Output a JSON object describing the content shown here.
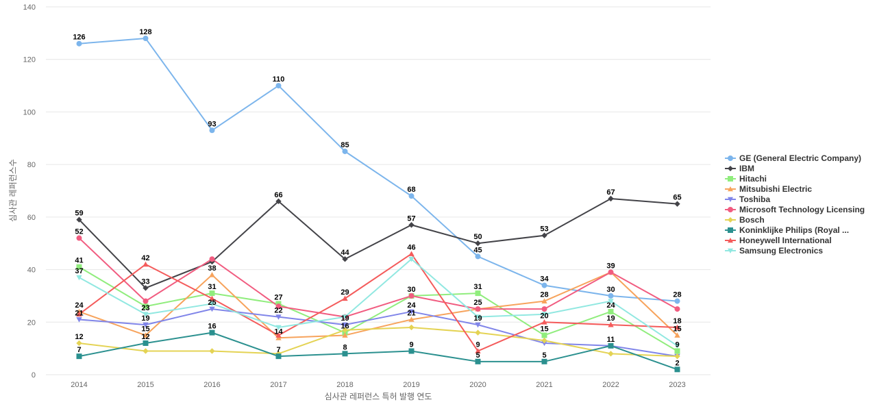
{
  "chart_data": {
    "type": "line",
    "xlabel": "심사관 레퍼런스 특허 발행 연도",
    "ylabel": "심사관 레퍼런스수",
    "ylim": [
      0,
      140
    ],
    "yticks": [
      0,
      20,
      40,
      60,
      80,
      100,
      120,
      140
    ],
    "grid": true,
    "legend_position": "right",
    "categories": [
      "2014",
      "2015",
      "2016",
      "2017",
      "2018",
      "2019",
      "2020",
      "2021",
      "2022",
      "2023"
    ],
    "series": [
      {
        "name": "GE (General Electric Company)",
        "color": "#7cb5ec",
        "marker": "circle",
        "values": [
          126,
          128,
          93,
          110,
          85,
          68,
          45,
          34,
          30,
          28
        ],
        "labels": [
          true,
          true,
          true,
          true,
          true,
          true,
          true,
          true,
          true,
          true
        ]
      },
      {
        "name": "IBM",
        "color": "#434348",
        "marker": "diamond",
        "values": [
          59,
          33,
          43,
          66,
          44,
          57,
          50,
          53,
          67,
          65
        ],
        "labels": [
          true,
          true,
          false,
          true,
          true,
          true,
          true,
          true,
          true,
          true
        ]
      },
      {
        "name": "Hitachi",
        "color": "#90ed7d",
        "marker": "square",
        "values": [
          41,
          26,
          31,
          27,
          16,
          30,
          31,
          15,
          24,
          9
        ],
        "labels": [
          true,
          false,
          true,
          true,
          true,
          true,
          true,
          true,
          true,
          true
        ]
      },
      {
        "name": "Mitsubishi Electric",
        "color": "#f7a35c",
        "marker": "triangle",
        "values": [
          24,
          15,
          38,
          14,
          15,
          21,
          25,
          28,
          39,
          15
        ],
        "labels": [
          true,
          true,
          true,
          true,
          false,
          true,
          true,
          true,
          true,
          true
        ]
      },
      {
        "name": "Toshiba",
        "color": "#8085e9",
        "marker": "triangle-down",
        "values": [
          21,
          19,
          25,
          22,
          19,
          24,
          19,
          12,
          11,
          7
        ],
        "labels": [
          true,
          true,
          true,
          true,
          true,
          true,
          true,
          false,
          false,
          false
        ]
      },
      {
        "name": "Microsoft Technology Licensing",
        "color": "#f15c80",
        "marker": "circle",
        "values": [
          52,
          28,
          44,
          26,
          22,
          30,
          25,
          25,
          39,
          25
        ],
        "labels": [
          true,
          false,
          false,
          false,
          false,
          false,
          false,
          false,
          false,
          false
        ]
      },
      {
        "name": "Bosch",
        "color": "#e4d354",
        "marker": "diamond",
        "values": [
          12,
          9,
          9,
          8,
          17,
          18,
          16,
          13,
          8,
          7
        ],
        "labels": [
          true,
          false,
          false,
          false,
          false,
          false,
          false,
          false,
          false,
          false
        ]
      },
      {
        "name": "Koninklijke Philips (Royal ...",
        "color": "#2b908f",
        "marker": "square",
        "values": [
          7,
          12,
          16,
          7,
          8,
          9,
          5,
          5,
          11,
          2
        ],
        "labels": [
          true,
          true,
          true,
          true,
          true,
          true,
          true,
          true,
          true,
          true
        ]
      },
      {
        "name": "Honeywell International",
        "color": "#f45b5b",
        "marker": "triangle",
        "values": [
          23,
          42,
          29,
          15,
          29,
          46,
          9,
          20,
          19,
          18
        ],
        "labels": [
          false,
          true,
          false,
          false,
          true,
          true,
          true,
          true,
          true,
          true
        ]
      },
      {
        "name": "Samsung Electronics",
        "color": "#91e8e1",
        "marker": "triangle-down",
        "values": [
          37,
          23,
          27,
          18,
          22,
          44,
          22,
          23,
          28,
          11
        ],
        "labels": [
          true,
          true,
          false,
          false,
          false,
          false,
          false,
          false,
          false,
          false
        ]
      }
    ]
  }
}
